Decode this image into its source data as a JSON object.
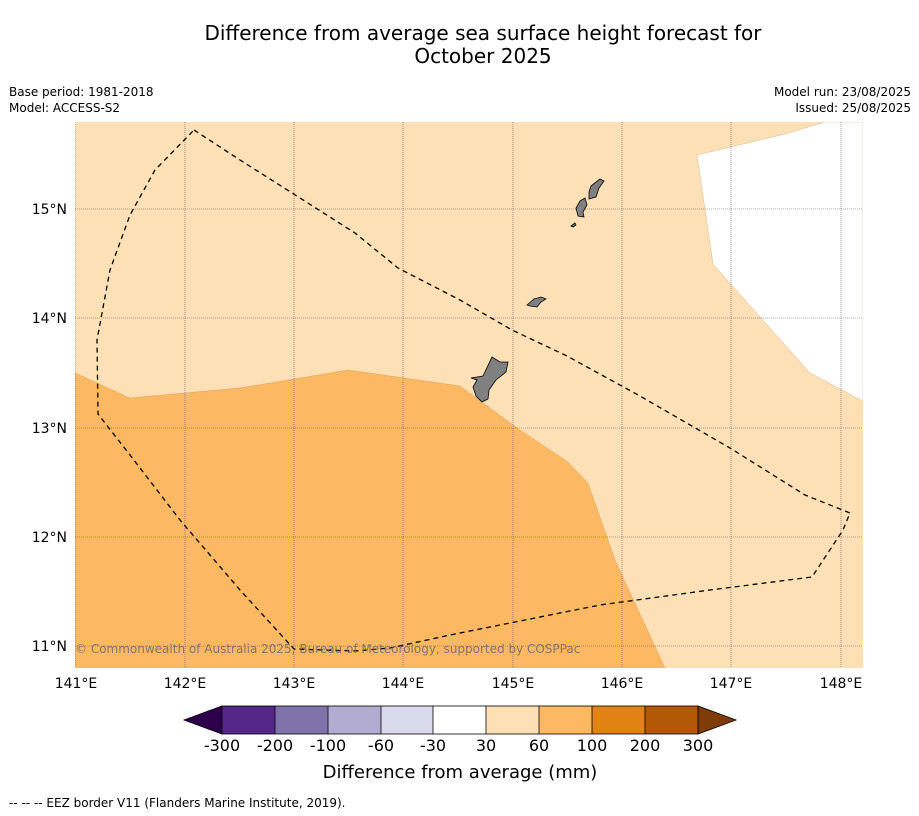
{
  "title_line1": "Difference from average sea surface height forecast for",
  "title_line2": "October 2025",
  "meta": {
    "base_period": "Base period: 1981-2018",
    "model": "Model: ACCESS-S2",
    "model_run": "Model run: 23/08/2025",
    "issued": "Issued: 25/08/2025"
  },
  "map": {
    "lon_ticks": [
      "141°E",
      "142°E",
      "143°E",
      "144°E",
      "145°E",
      "146°E",
      "147°E",
      "148°E"
    ],
    "lat_ticks": [
      "15°N",
      "14°N",
      "13°N",
      "12°N",
      "11°N"
    ],
    "copyright": "© Commonwealth of Australia 2025, Bureau of Meteorology, supported by COSPPac",
    "land_color": "#808080",
    "background_category": "30 to 60",
    "lower_region_category": "60 to 100",
    "northeast_region_category": "-30 to 30"
  },
  "colorbar": {
    "ticks": [
      "-300",
      "-200",
      "-100",
      "-60",
      "-30",
      "30",
      "60",
      "100",
      "200",
      "300"
    ],
    "colors": [
      "#2d004b",
      "#542788",
      "#8073ac",
      "#b2abd2",
      "#d8daeb",
      "#ffffff",
      "#fee0b6",
      "#fdb863",
      "#e08214",
      "#b35806",
      "#7f3b08"
    ],
    "label": "Difference from average (mm)"
  },
  "footnote": "--  --  -- EEZ border V11 (Flanders Marine Institute, 2019)."
}
